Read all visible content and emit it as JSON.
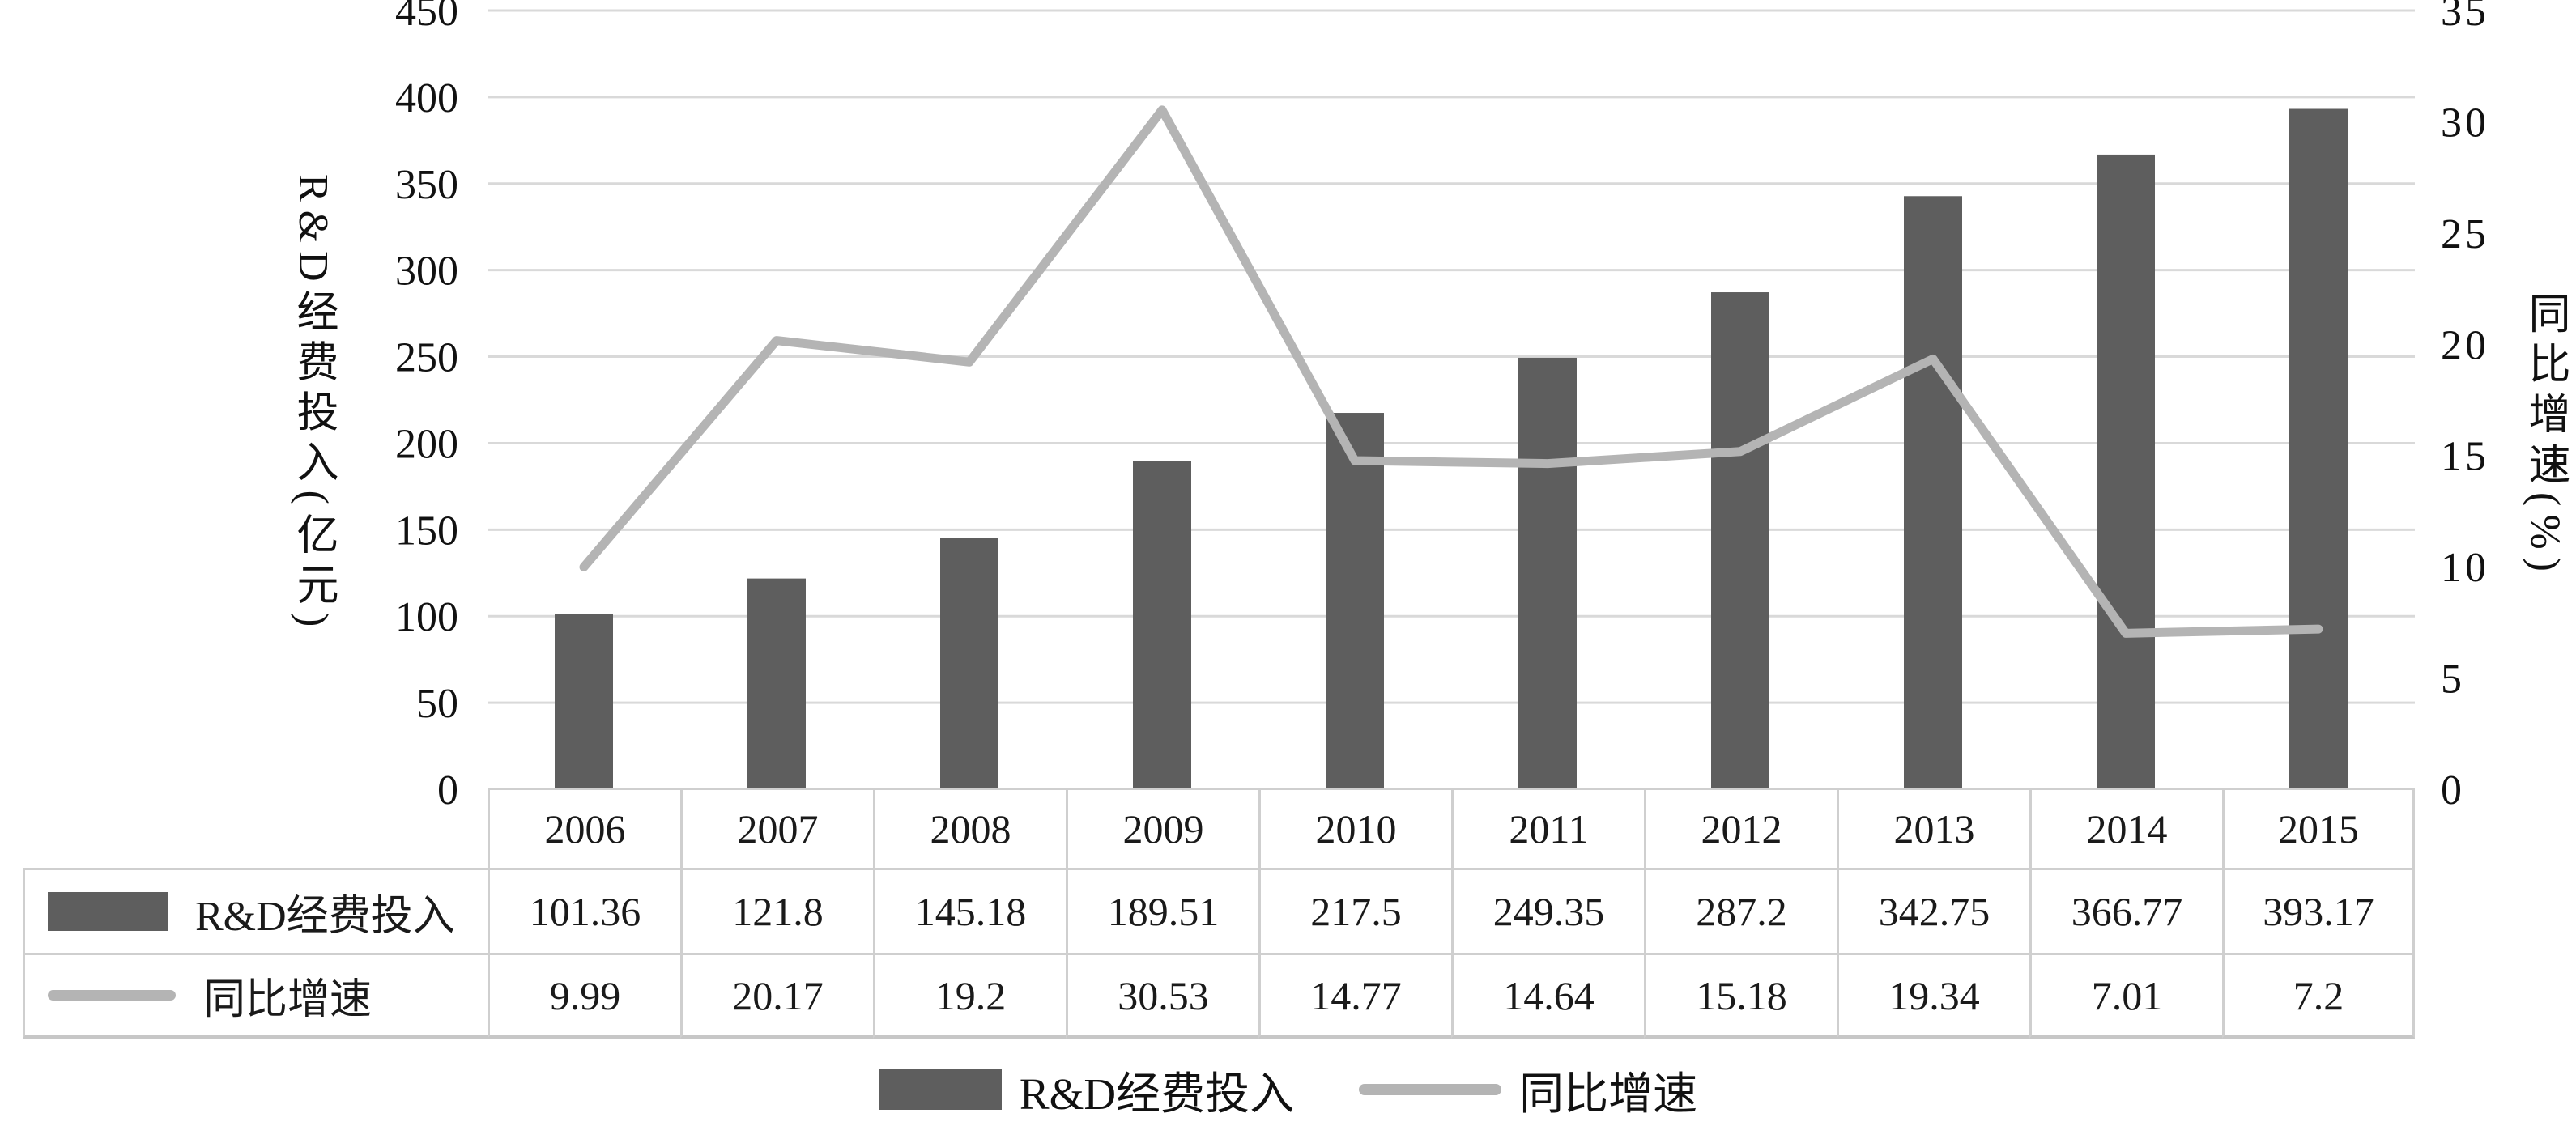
{
  "chart_data": {
    "type": "bar",
    "subtype": "bar-line-combo",
    "categories": [
      "2006",
      "2007",
      "2008",
      "2009",
      "2010",
      "2011",
      "2012",
      "2013",
      "2014",
      "2015"
    ],
    "series": [
      {
        "name": "R&D经费投入",
        "type": "bar",
        "axis": "left",
        "color": "#5e5e5e",
        "values": [
          101.36,
          121.8,
          145.18,
          189.51,
          217.5,
          249.35,
          287.2,
          342.75,
          366.77,
          393.17
        ]
      },
      {
        "name": "同比增速",
        "type": "line",
        "axis": "right",
        "color": "#b4b4b4",
        "values": [
          9.99,
          20.17,
          19.2,
          30.53,
          14.77,
          14.64,
          15.18,
          19.34,
          7.01,
          7.2
        ]
      }
    ],
    "left_axis": {
      "title": "R&D经费投入(亿元)",
      "min": 0,
      "max": 450,
      "step": 50,
      "ticks": [
        "450",
        "400",
        "350",
        "300",
        "250",
        "200",
        "150",
        "100",
        "50",
        "0"
      ]
    },
    "right_axis": {
      "title": "同比增速(%)",
      "min": 0,
      "max": 35,
      "step": 5,
      "ticks": [
        "35",
        "30",
        "25",
        "20",
        "15",
        "10",
        "5",
        "0"
      ]
    },
    "grid": true,
    "gridline_color": "#d9d9d9",
    "legend_position": "bottom",
    "title": ""
  },
  "table": {
    "row_labels": [
      "R&D经费投入",
      "同比增速"
    ]
  },
  "legend": {
    "items": [
      {
        "label": "R&D经费投入",
        "swatch": "bar"
      },
      {
        "label": "同比增速",
        "swatch": "line"
      }
    ]
  }
}
